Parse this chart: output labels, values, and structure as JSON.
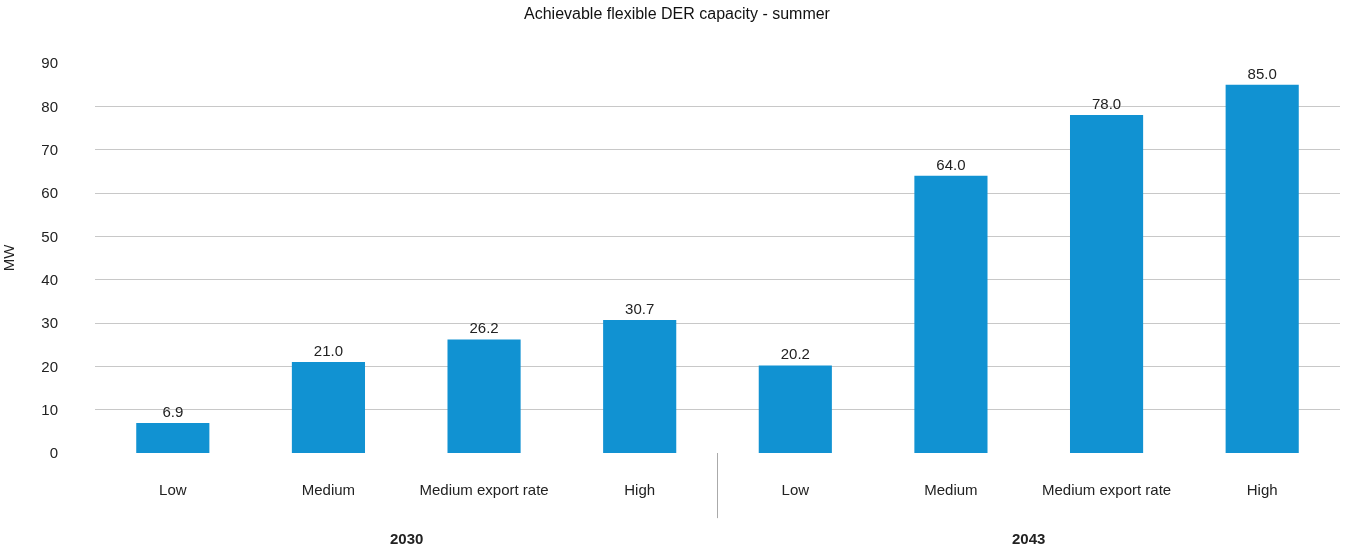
{
  "chart_data": {
    "type": "bar",
    "title": "Achievable flexible DER capacity - summer",
    "ylabel": "MW",
    "categories": [
      "Low",
      "Medium",
      "Medium export rate",
      "High",
      "Low",
      "Medium",
      "Medium export rate",
      "High"
    ],
    "values": [
      6.9,
      21.0,
      26.2,
      30.7,
      20.2,
      64.0,
      78.0,
      85.0
    ],
    "value_labels": [
      "6.9",
      "21.0",
      "26.2",
      "30.7",
      "20.2",
      "64.0",
      "78.0",
      "85.0"
    ],
    "color": "#1192d2",
    "ylim": [
      0,
      90
    ],
    "yticks": [
      0,
      10,
      20,
      30,
      40,
      50,
      60,
      70,
      80,
      90
    ],
    "grid": "y",
    "annotations": [
      "2030",
      "2043"
    ]
  }
}
